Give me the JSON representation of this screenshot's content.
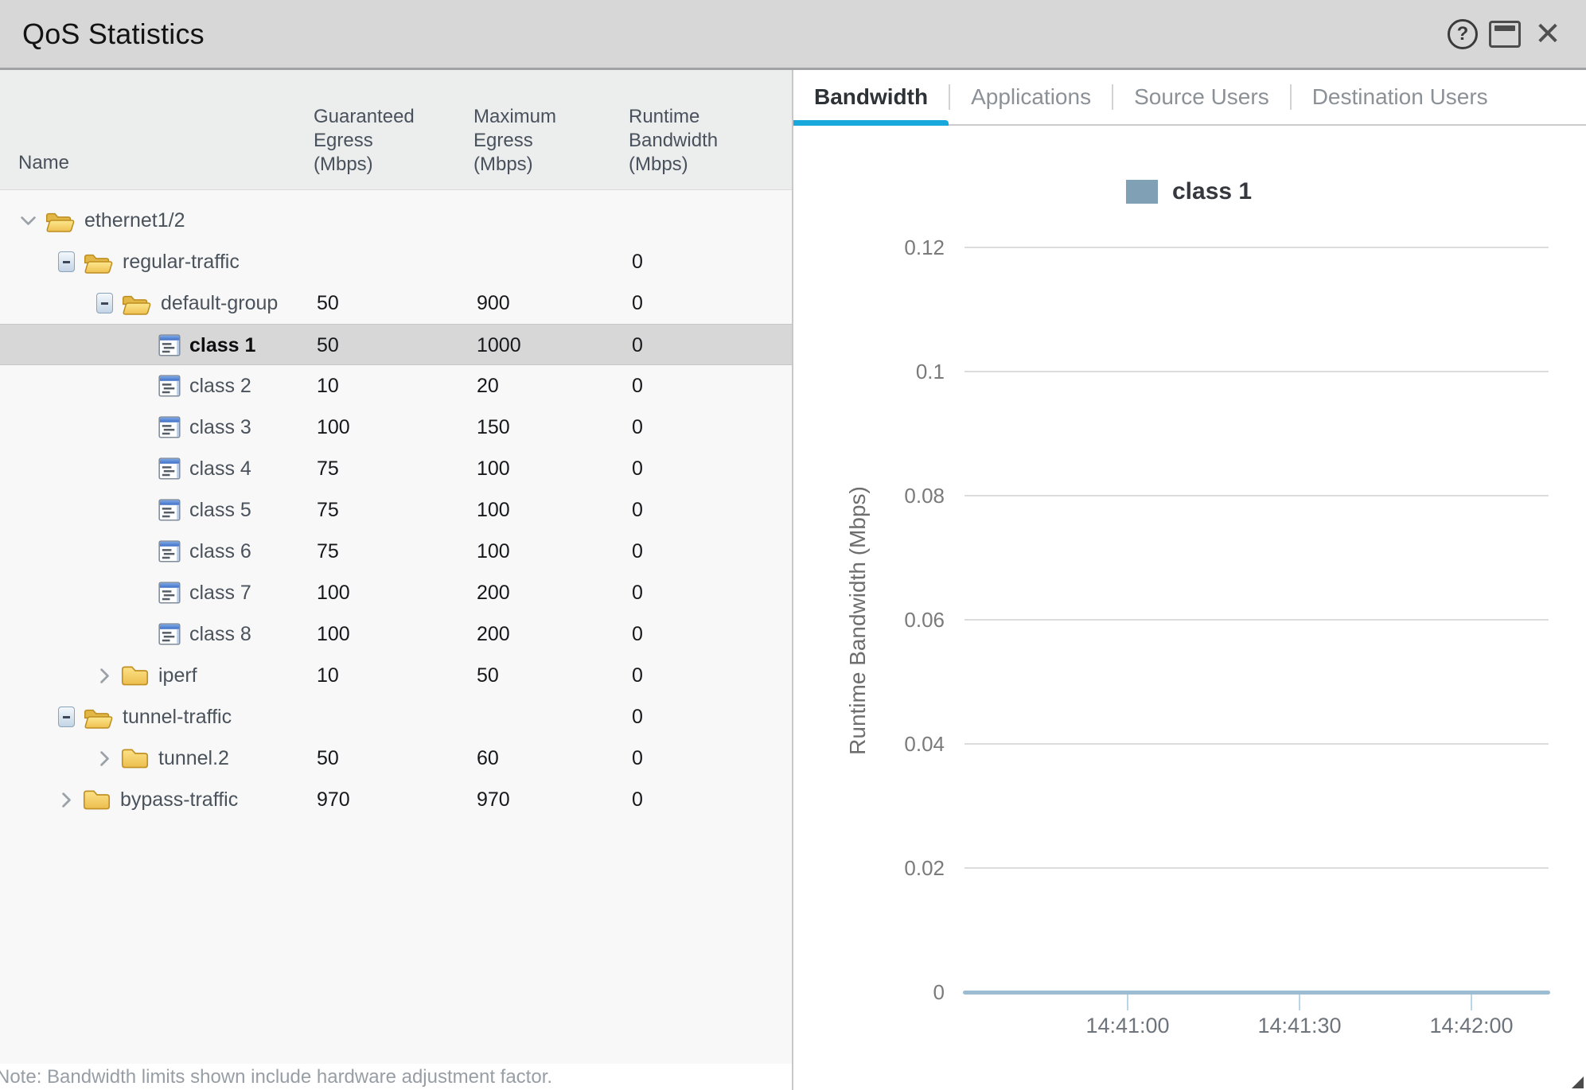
{
  "window": {
    "title": "QoS Statistics",
    "controls": [
      "help-icon",
      "window-icon",
      "close-icon"
    ]
  },
  "left_panel": {
    "columns": {
      "name": "Name",
      "guaranteed": "Guaranteed Egress (Mbps)",
      "maximum": "Maximum Egress (Mbps)",
      "runtime": "Runtime Bandwidth (Mbps)"
    },
    "rows": [
      {
        "name": "ethernet1/2",
        "level": 0,
        "expander": "chevron-down",
        "icon": "folder-open",
        "guaranteed": "",
        "maximum": "",
        "runtime": "",
        "selected": false,
        "bold": false
      },
      {
        "name": "regular-traffic",
        "level": 1,
        "expander": "minus-box",
        "icon": "folder-open",
        "guaranteed": "",
        "maximum": "",
        "runtime": "0",
        "selected": false,
        "bold": false
      },
      {
        "name": "default-group",
        "level": 2,
        "expander": "minus-box",
        "icon": "folder-open",
        "guaranteed": "50",
        "maximum": "900",
        "runtime": "0",
        "selected": false,
        "bold": false
      },
      {
        "name": "class 1",
        "level": 3,
        "expander": "none",
        "icon": "class-item",
        "guaranteed": "50",
        "maximum": "1000",
        "runtime": "0",
        "selected": true,
        "bold": true
      },
      {
        "name": "class 2",
        "level": 3,
        "expander": "none",
        "icon": "class-item",
        "guaranteed": "10",
        "maximum": "20",
        "runtime": "0",
        "selected": false,
        "bold": false
      },
      {
        "name": "class 3",
        "level": 3,
        "expander": "none",
        "icon": "class-item",
        "guaranteed": "100",
        "maximum": "150",
        "runtime": "0",
        "selected": false,
        "bold": false
      },
      {
        "name": "class 4",
        "level": 3,
        "expander": "none",
        "icon": "class-item",
        "guaranteed": "75",
        "maximum": "100",
        "runtime": "0",
        "selected": false,
        "bold": false
      },
      {
        "name": "class 5",
        "level": 3,
        "expander": "none",
        "icon": "class-item",
        "guaranteed": "75",
        "maximum": "100",
        "runtime": "0",
        "selected": false,
        "bold": false
      },
      {
        "name": "class 6",
        "level": 3,
        "expander": "none",
        "icon": "class-item",
        "guaranteed": "75",
        "maximum": "100",
        "runtime": "0",
        "selected": false,
        "bold": false
      },
      {
        "name": "class 7",
        "level": 3,
        "expander": "none",
        "icon": "class-item",
        "guaranteed": "100",
        "maximum": "200",
        "runtime": "0",
        "selected": false,
        "bold": false
      },
      {
        "name": "class 8",
        "level": 3,
        "expander": "none",
        "icon": "class-item",
        "guaranteed": "100",
        "maximum": "200",
        "runtime": "0",
        "selected": false,
        "bold": false
      },
      {
        "name": "iperf",
        "level": 2,
        "expander": "chevron-right",
        "icon": "folder-closed",
        "guaranteed": "10",
        "maximum": "50",
        "runtime": "0",
        "selected": false,
        "bold": false
      },
      {
        "name": "tunnel-traffic",
        "level": 1,
        "expander": "minus-box",
        "icon": "folder-open",
        "guaranteed": "",
        "maximum": "",
        "runtime": "0",
        "selected": false,
        "bold": false
      },
      {
        "name": "tunnel.2",
        "level": 2,
        "expander": "chevron-right",
        "icon": "folder-closed",
        "guaranteed": "50",
        "maximum": "60",
        "runtime": "0",
        "selected": false,
        "bold": false
      },
      {
        "name": "bypass-traffic",
        "level": 1,
        "expander": "chevron-right",
        "icon": "folder-closed",
        "guaranteed": "970",
        "maximum": "970",
        "runtime": "0",
        "selected": false,
        "bold": false
      }
    ],
    "note": "Note: Bandwidth limits shown include hardware adjustment factor."
  },
  "tabs": [
    {
      "label": "Bandwidth",
      "active": true
    },
    {
      "label": "Applications",
      "active": false
    },
    {
      "label": "Source Users",
      "active": false
    },
    {
      "label": "Destination Users",
      "active": false
    }
  ],
  "chart_data": {
    "type": "line",
    "title": "",
    "xlabel": "",
    "ylabel": "Runtime Bandwidth (Mbps)",
    "legend_position": "top",
    "grid": true,
    "y_ticks": [
      0,
      0.02,
      0.04,
      0.06,
      0.08,
      0.1,
      0.12
    ],
    "ylim": [
      0,
      0.13
    ],
    "x_ticks": [
      "14:41:00",
      "14:41:30",
      "14:42:00"
    ],
    "series": [
      {
        "name": "class 1",
        "color": "#7fa0b5",
        "values": [
          0,
          0,
          0
        ]
      }
    ]
  },
  "colors": {
    "tab_accent": "#18a8dc",
    "series_class1": "#7fa0b5",
    "zero_line": "#9cbcd4",
    "selected_row": "#d7d7d7",
    "titlebar_bg": "#d7d7d8"
  }
}
